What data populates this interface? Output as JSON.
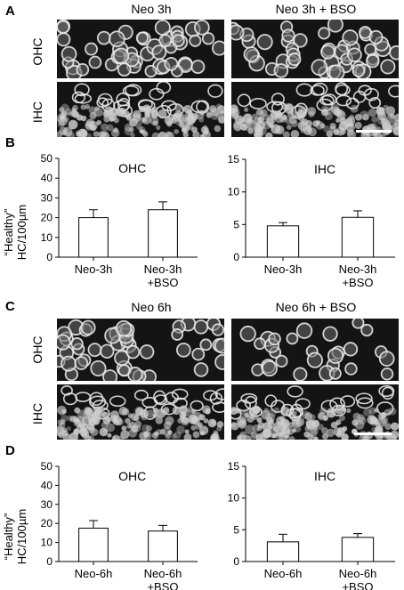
{
  "panels": {
    "A": {
      "letter": "A",
      "titles": [
        "Neo 3h",
        "Neo 3h + BSO"
      ],
      "rows": [
        "OHC",
        "IHC"
      ]
    },
    "B": {
      "letter": "B",
      "ylabel_line1": "“Healthy”",
      "ylabel_line2": "HC/100µm"
    },
    "C": {
      "letter": "C",
      "titles": [
        "Neo 6h",
        "Neo 6h + BSO"
      ],
      "rows": [
        "OHC",
        "IHC"
      ]
    },
    "D": {
      "letter": "D",
      "ylabel_line1": "“Healthy”",
      "ylabel_line2": "HC/100µm"
    }
  },
  "chart_data": [
    {
      "id": "B-OHC",
      "type": "bar",
      "title": "OHC",
      "categories": [
        [
          "Neo-3h"
        ],
        [
          "Neo-3h",
          "+BSO"
        ]
      ],
      "values": [
        20,
        24
      ],
      "errors": [
        4,
        4
      ],
      "ylim": [
        0,
        50
      ],
      "yticks": [
        0,
        10,
        20,
        30,
        40,
        50
      ],
      "bar_color": "#ffffff"
    },
    {
      "id": "B-IHC",
      "type": "bar",
      "title": "IHC",
      "categories": [
        [
          "Neo-3h"
        ],
        [
          "Neo-3h",
          "+BSO"
        ]
      ],
      "values": [
        4.8,
        6.1
      ],
      "errors": [
        0.5,
        1.0
      ],
      "ylim": [
        0,
        15
      ],
      "yticks": [
        0,
        5,
        10,
        15
      ],
      "bar_color": "#ffffff"
    },
    {
      "id": "D-OHC",
      "type": "bar",
      "title": "OHC",
      "categories": [
        [
          "Neo-6h"
        ],
        [
          "Neo-6h",
          "+BSO"
        ]
      ],
      "values": [
        17.5,
        16
      ],
      "errors": [
        4,
        3
      ],
      "ylim": [
        0,
        50
      ],
      "yticks": [
        0,
        10,
        20,
        30,
        40,
        50
      ],
      "bar_color": "#ffffff"
    },
    {
      "id": "D-IHC",
      "type": "bar",
      "title": "IHC",
      "categories": [
        [
          "Neo-6h"
        ],
        [
          "Neo-6h",
          "+BSO"
        ]
      ],
      "values": [
        3.1,
        3.8
      ],
      "errors": [
        1.2,
        0.6
      ],
      "ylim": [
        0,
        15
      ],
      "yticks": [
        0,
        5,
        10,
        15
      ],
      "bar_color": "#ffffff"
    }
  ]
}
